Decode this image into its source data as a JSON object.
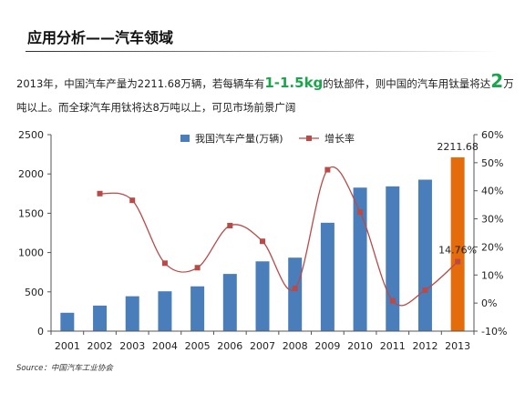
{
  "slide": {
    "title": "应用分析——汽车领域",
    "para": {
      "p1": "2013年，中国汽车产量为2211.68万辆，若每辆车有",
      "p2": "1-1.5kg",
      "p3": "的钛部件，则中国的汽车用钛量将达",
      "p4": "2",
      "p5": "万吨以上。而全球汽车用钛将达8万吨以上，可见市场前景广阔"
    },
    "source": "Source：中国汽车工业协会"
  },
  "colors": {
    "bar": "#4a7ebb",
    "bar_highlight": "#e46c0a",
    "line": "#b94a48",
    "axis": "#555555"
  },
  "chart_data": {
    "type": "bar",
    "categories": [
      "2001",
      "2002",
      "2003",
      "2004",
      "2005",
      "2006",
      "2007",
      "2008",
      "2009",
      "2010",
      "2011",
      "2012",
      "2013"
    ],
    "series": [
      {
        "name": "我国汽车产量(万辆)",
        "type": "bar",
        "axis": "left",
        "values": [
          234,
          325,
          444,
          507,
          570,
          728,
          888,
          935,
          1379,
          1826,
          1842,
          1927,
          2211.68
        ]
      },
      {
        "name": "增长率",
        "type": "line",
        "axis": "right",
        "values": [
          null,
          39.0,
          36.6,
          14.2,
          12.6,
          27.6,
          22.0,
          5.2,
          47.5,
          32.4,
          0.8,
          4.6,
          14.76
        ]
      }
    ],
    "data_labels": {
      "bar_2013": "2211.68",
      "line_2013": "14.76%"
    },
    "left_axis": {
      "ylim": [
        0,
        2500
      ],
      "ticks": [
        "0",
        "500",
        "1000",
        "1500",
        "2000",
        "2500"
      ]
    },
    "right_axis": {
      "ylim": [
        -10,
        60
      ],
      "ticks": [
        "-10%",
        "0%",
        "10%",
        "20%",
        "30%",
        "40%",
        "50%",
        "60%"
      ]
    },
    "highlight_category": "2013",
    "legend_position": "top-center",
    "grid": false
  }
}
